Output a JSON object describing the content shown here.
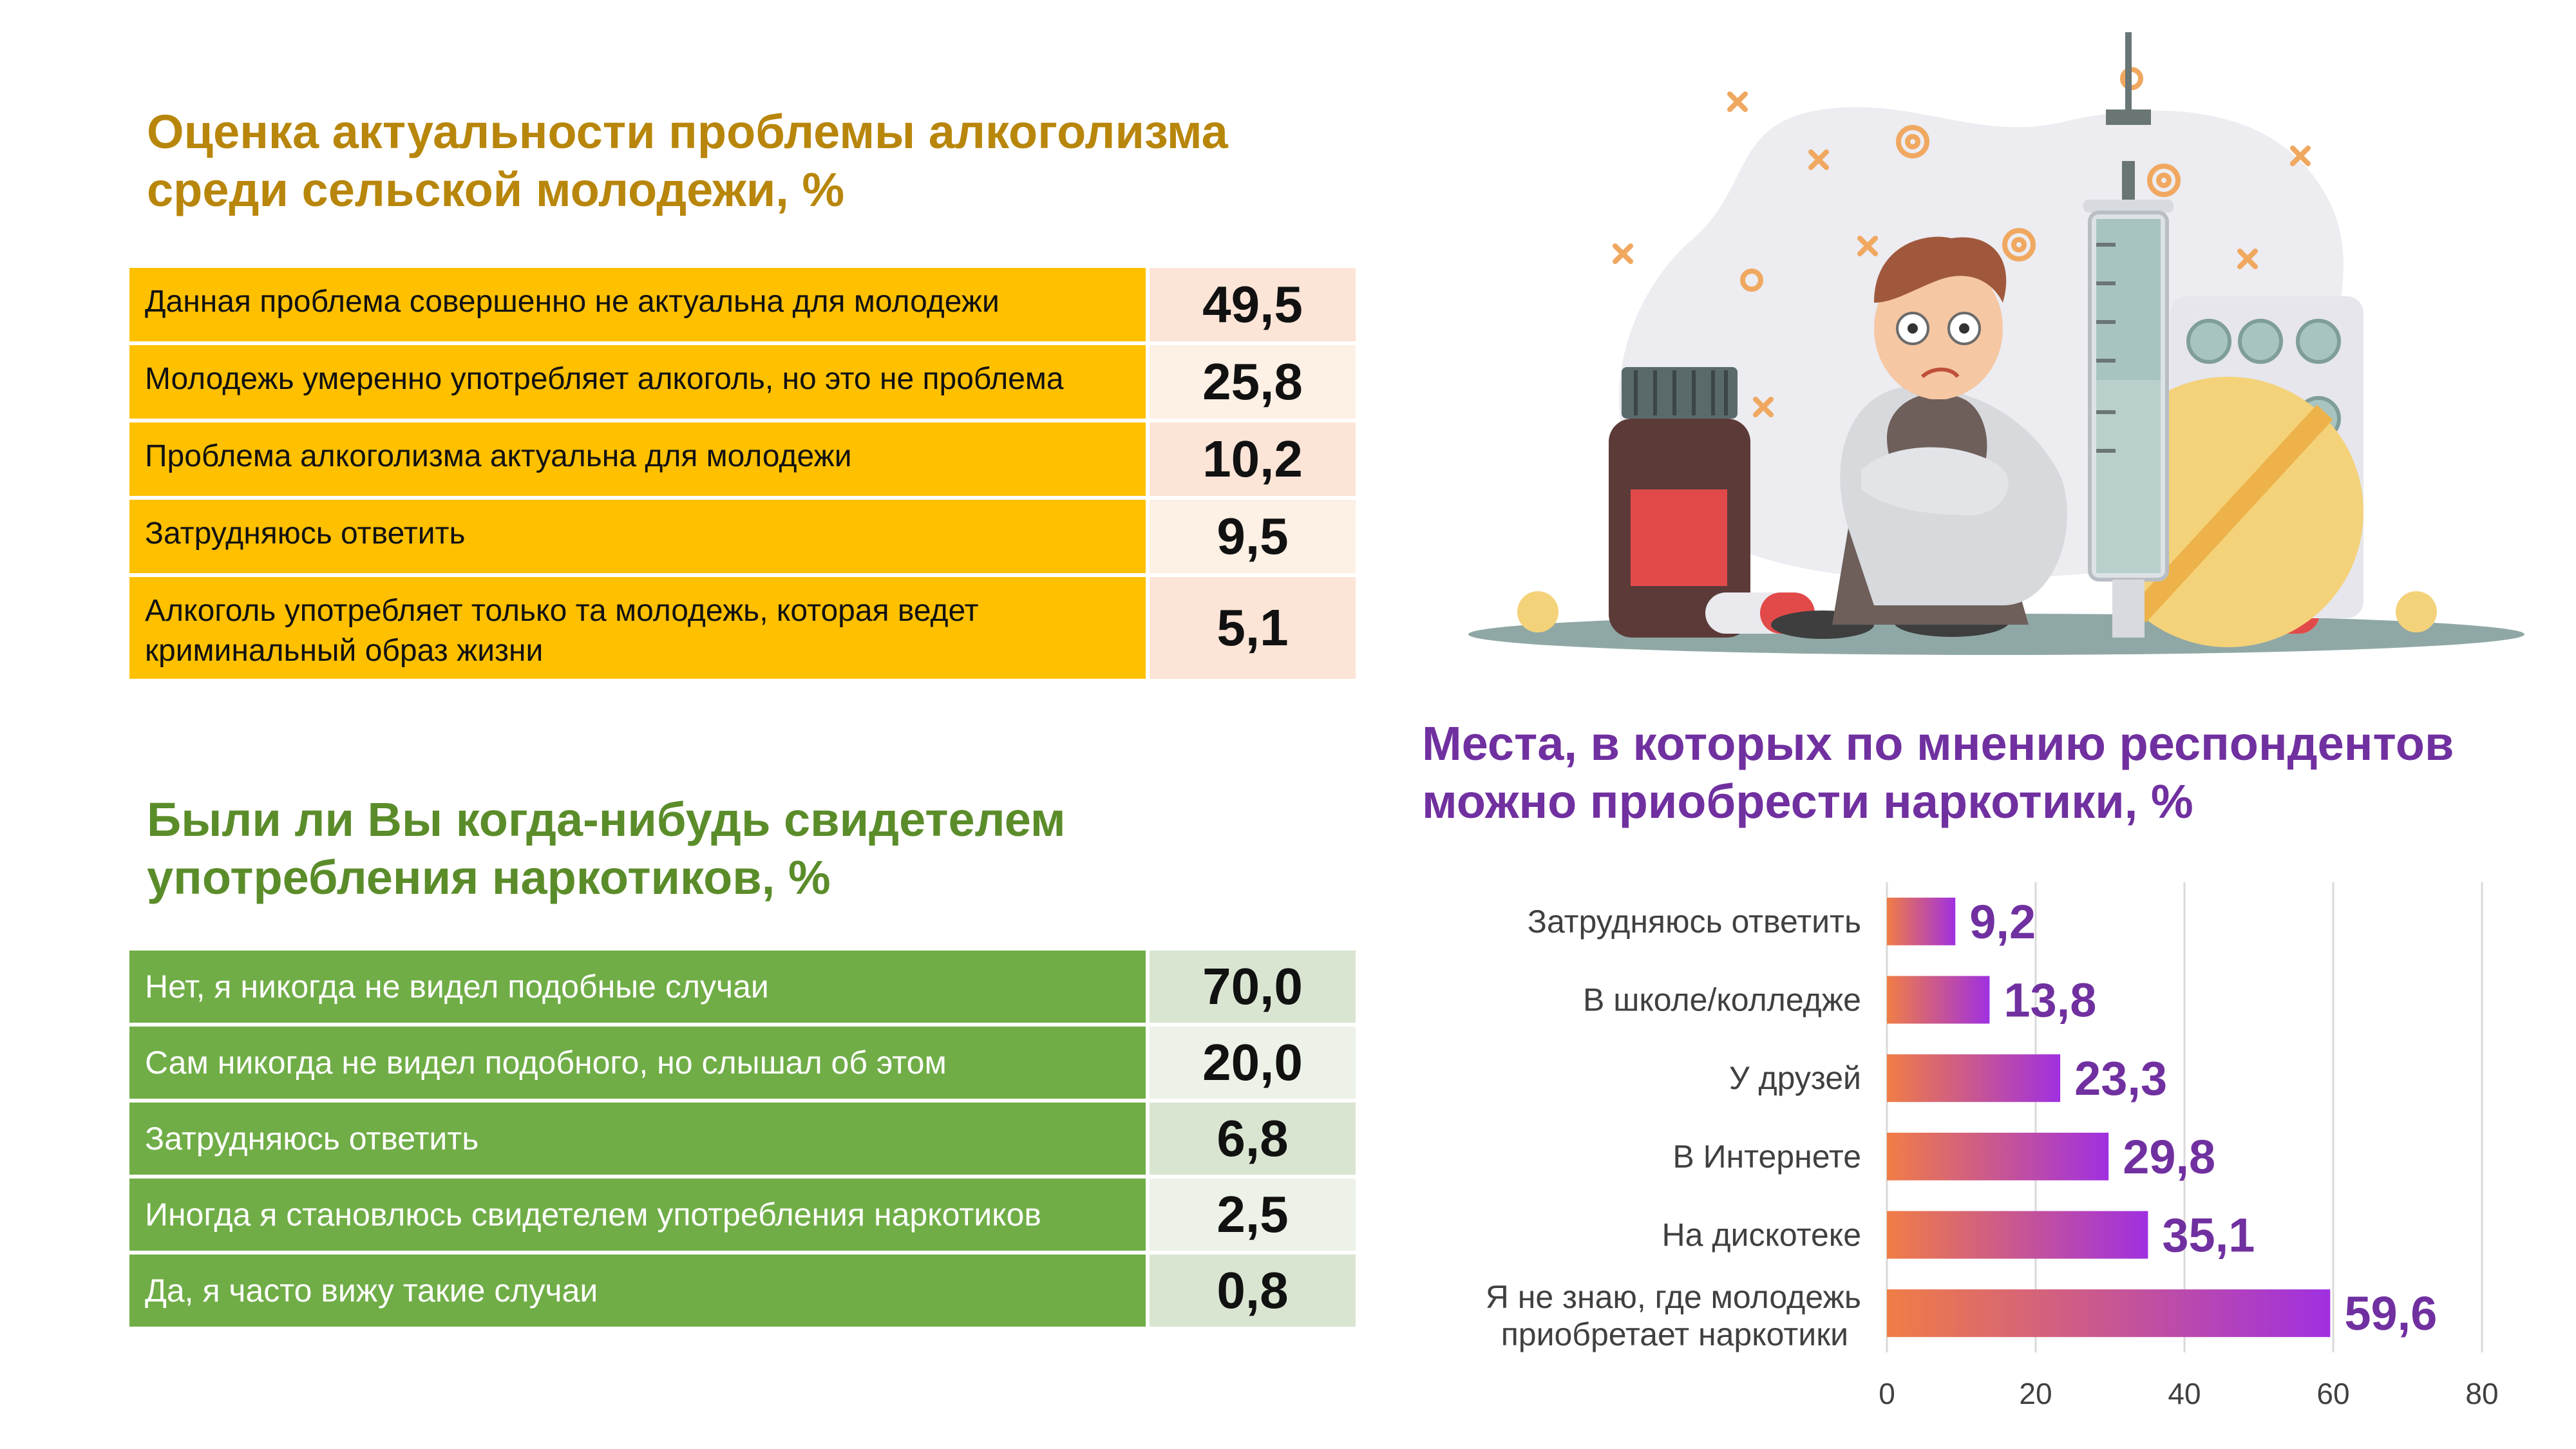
{
  "alcohol": {
    "title": "Оценка актуальности проблемы алкоголизма среди сельской молодежи, %",
    "rows": [
      {
        "label": "Данная проблема совершенно не актуальна для молодежи",
        "value": "49,5"
      },
      {
        "label": "Молодежь умеренно употребляет алкоголь, но это не проблема",
        "value": "25,8"
      },
      {
        "label": "Проблема алкоголизма актуальна для молодежи",
        "value": "10,2"
      },
      {
        "label": "Затрудняюсь ответить",
        "value": "9,5"
      },
      {
        "label": "Алкоголь употребляет только та молодежь, которая ведет криминальный образ жизни",
        "value": "5,1"
      }
    ]
  },
  "drugs_witness": {
    "title": "Были ли Вы когда-нибудь свидетелем употребления наркотиков, %",
    "rows": [
      {
        "label": "Нет, я никогда не видел подобные случаи",
        "value": "70,0"
      },
      {
        "label": "Сам никогда не видел подобного, но слышал об этом",
        "value": "20,0"
      },
      {
        "label": "Затрудняюсь ответить",
        "value": "6,8"
      },
      {
        "label": "Иногда я становлюсь свидетелем употребления наркотиков",
        "value": "2,5"
      },
      {
        "label": "Да, я часто вижу такие случаи",
        "value": "0,8"
      }
    ]
  },
  "colors": {
    "alcohol_title": "#B8860B",
    "alcohol_label_bg": "#FFC000",
    "drugs_title": "#5B8C2A",
    "drugs_label_bg": "#70AD47",
    "chart_title": "#7030A0",
    "bar_gradient_start": "#F07D45",
    "bar_gradient_end": "#A030E0"
  },
  "illustration": {
    "icon": "sad-boy-with-pills-and-syringe-illustration"
  },
  "chart_data": {
    "type": "bar",
    "orientation": "horizontal",
    "title": "Места, в которых по мнению респондентов можно приобрести наркотики, %",
    "categories": [
      "Затрудняюсь ответить",
      "В школе/колледже",
      "У друзей",
      "В Интернете",
      "На дискотеке",
      "Я не знаю, где молодежь приобретает наркотики"
    ],
    "values": [
      9.2,
      13.8,
      23.3,
      29.8,
      35.1,
      59.6
    ],
    "value_labels": [
      "9,2",
      "13,8",
      "23,3",
      "29,8",
      "35,1",
      "59,6"
    ],
    "xlim": [
      0,
      80
    ],
    "xticks": [
      "0",
      "20",
      "40",
      "60",
      "80"
    ],
    "grid": true
  }
}
